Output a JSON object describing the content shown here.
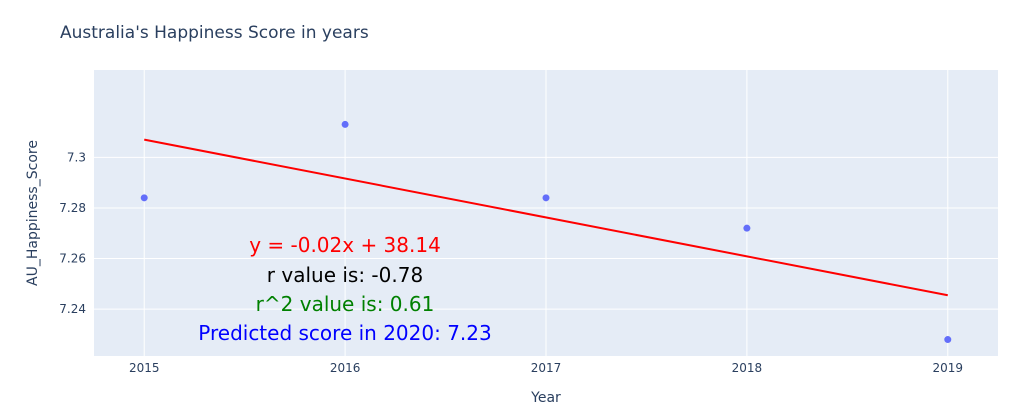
{
  "chart_data": {
    "type": "scatter",
    "title": "Australia's Happiness Score in years",
    "xlabel": "Year",
    "ylabel": "AU_Happiness_Score",
    "x": [
      2015,
      2016,
      2017,
      2018,
      2019
    ],
    "y": [
      7.284,
      7.313,
      7.284,
      7.272,
      7.228
    ],
    "xlim": [
      2014.75,
      2019.25
    ],
    "ylim": [
      7.2215,
      7.3345
    ],
    "x_ticks": [
      "2015",
      "2016",
      "2017",
      "2018",
      "2019"
    ],
    "y_ticks": [
      "7.24",
      "7.26",
      "7.28",
      "7.3"
    ],
    "y_tick_values": [
      7.24,
      7.26,
      7.28,
      7.3
    ],
    "grid": true,
    "trendline": {
      "x": [
        2015,
        2019
      ],
      "y": [
        7.307,
        7.2455
      ],
      "color": "#ff0000"
    },
    "annotations": [
      {
        "text": "y = -0.02x + 38.14",
        "color": "#ff0000"
      },
      {
        "text": "r value is: -0.78",
        "color": "#000000"
      },
      {
        "text": "r^2 value is: 0.61",
        "color": "#008000"
      },
      {
        "text": "Predicted score in 2020: 7.23",
        "color": "#0000ff"
      }
    ]
  },
  "colors": {
    "plot_bg": "#e5ecf6",
    "grid": "#ffffff",
    "marker": "#636efa",
    "text": "#2a3f5f"
  }
}
